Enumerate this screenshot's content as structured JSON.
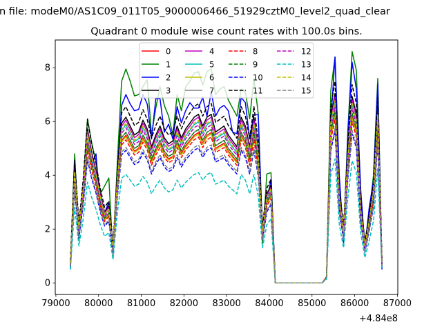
{
  "chart_data": {
    "type": "line",
    "suptitle": "n file: modeM0/AS1C09_011T05_9000006466_51929cztM0_level2_quad_clear",
    "title": "Quadrant 0 module wise count rates with 100.0s bins.",
    "xlabel": "",
    "ylabel": "",
    "x_offset_label": "+4.84e8",
    "x_start": 79340,
    "x_step": 100,
    "n_points": 74,
    "xlim": [
      78985,
      87010
    ],
    "ylim": [
      -0.43,
      9.03
    ],
    "xticks": [
      79000,
      80000,
      81000,
      82000,
      83000,
      84000,
      85000,
      86000,
      87000
    ],
    "xtick_labels": [
      "79000",
      "80000",
      "81000",
      "82000",
      "83000",
      "84000",
      "85000",
      "86000",
      "87000"
    ],
    "yticks": [
      0,
      2,
      4,
      6,
      8
    ],
    "ytick_labels": [
      "0",
      "2",
      "4",
      "6",
      "8"
    ],
    "grid": false,
    "legend_placement": "top-center",
    "legend_columns": 4,
    "typical_profile": [
      0.7,
      3.9,
      1.9,
      3.3,
      5.2,
      4.4,
      3.8,
      3.0,
      2.4,
      2.6,
      1.2,
      3.6,
      5.4,
      5.6,
      5.3,
      5.0,
      5.1,
      5.5,
      5.2,
      4.6,
      5.0,
      5.3,
      4.9,
      4.7,
      4.8,
      5.3,
      4.9,
      5.2,
      5.4,
      5.6,
      5.7,
      5.3,
      5.6,
      5.7,
      5.1,
      5.2,
      5.3,
      5.0,
      4.8,
      4.6,
      5.6,
      5.3,
      4.6,
      5.6,
      4.5,
      1.8,
      3.0,
      3.3,
      0,
      0,
      0,
      0,
      0,
      0,
      0,
      0,
      0,
      0,
      0,
      0,
      0.2,
      5.6,
      6.4,
      3.0,
      1.8,
      4.4,
      6.3,
      5.7,
      2.6,
      1.3,
      2.2,
      3.2,
      5.9,
      0.7
    ],
    "series": [
      {
        "name": "0",
        "color": "#ff0000",
        "dash": false,
        "scale": 0.98
      },
      {
        "name": "1",
        "color": "#008000",
        "dash": false,
        "values": [
          0.6,
          4.8,
          1.6,
          3.6,
          6.1,
          5.2,
          4.5,
          3.3,
          3.6,
          3.9,
          1.0,
          4.5,
          7.5,
          7.95,
          7.5,
          6.95,
          7.0,
          7.3,
          7.55,
          5.5,
          6.5,
          7.3,
          6.6,
          6.2,
          5.5,
          7.0,
          6.4,
          7.3,
          7.5,
          7.8,
          7.85,
          7.35,
          7.85,
          7.95,
          7.0,
          7.2,
          7.3,
          6.8,
          6.5,
          6.2,
          7.2,
          7.1,
          6.1,
          7.6,
          6.3,
          1.45,
          4.05,
          4.1,
          0,
          0,
          0,
          0,
          0,
          0,
          0,
          0,
          0,
          0,
          0,
          0,
          0.2,
          7.15,
          8.4,
          3.65,
          1.5,
          5.7,
          8.6,
          7.9,
          3.15,
          1.45,
          2.6,
          4.0,
          7.6,
          0.6
        ]
      },
      {
        "name": "2",
        "color": "#0000ff",
        "dash": false,
        "values": [
          0.5,
          4.5,
          1.8,
          3.5,
          5.6,
          4.4,
          4.8,
          2.7,
          2.6,
          3.0,
          1.2,
          4.0,
          6.6,
          7.0,
          6.65,
          6.4,
          6.45,
          7.0,
          6.65,
          5.35,
          6.85,
          6.85,
          5.6,
          5.9,
          5.35,
          6.55,
          5.95,
          6.4,
          6.7,
          6.5,
          6.5,
          6.9,
          6.2,
          7.1,
          6.2,
          6.5,
          6.6,
          6.4,
          5.6,
          5.55,
          6.9,
          6.7,
          5.35,
          6.25,
          6.25,
          1.85,
          3.0,
          3.85,
          0,
          0,
          0,
          0,
          0,
          0,
          0,
          0,
          0,
          0,
          0,
          0,
          0.2,
          6.0,
          8.4,
          4.0,
          1.5,
          5.5,
          8.2,
          7.2,
          3.5,
          1.3,
          2.8,
          3.8,
          7.4,
          0.5
        ]
      },
      {
        "name": "3",
        "color": "#000000",
        "dash": false,
        "scale": 1.1
      },
      {
        "name": "4",
        "color": "#bf00bf",
        "dash": false,
        "scale": 1.08
      },
      {
        "name": "5",
        "color": "#00bfbf",
        "dash": false,
        "scale": 1.05
      },
      {
        "name": "6",
        "color": "#bfbf00",
        "dash": false,
        "scale": 0.97
      },
      {
        "name": "7",
        "color": "#808080",
        "dash": false,
        "scale": 1.0
      },
      {
        "name": "8",
        "color": "#ff0000",
        "dash": true,
        "scale": 0.95
      },
      {
        "name": "9",
        "color": "#008000",
        "dash": true,
        "scale": 1.0
      },
      {
        "name": "10",
        "color": "#0000ff",
        "dash": true,
        "scale": 0.88
      },
      {
        "name": "11",
        "color": "#000000",
        "dash": true,
        "scale": 1.17
      },
      {
        "name": "12",
        "color": "#bf00bf",
        "dash": true,
        "scale": 1.03
      },
      {
        "name": "13",
        "color": "#00bfbf",
        "dash": true,
        "scale": 0.72
      },
      {
        "name": "14",
        "color": "#bfbf00",
        "dash": true,
        "scale": 1.06
      },
      {
        "name": "15",
        "color": "#808080",
        "dash": true,
        "scale": 0.9
      }
    ]
  }
}
